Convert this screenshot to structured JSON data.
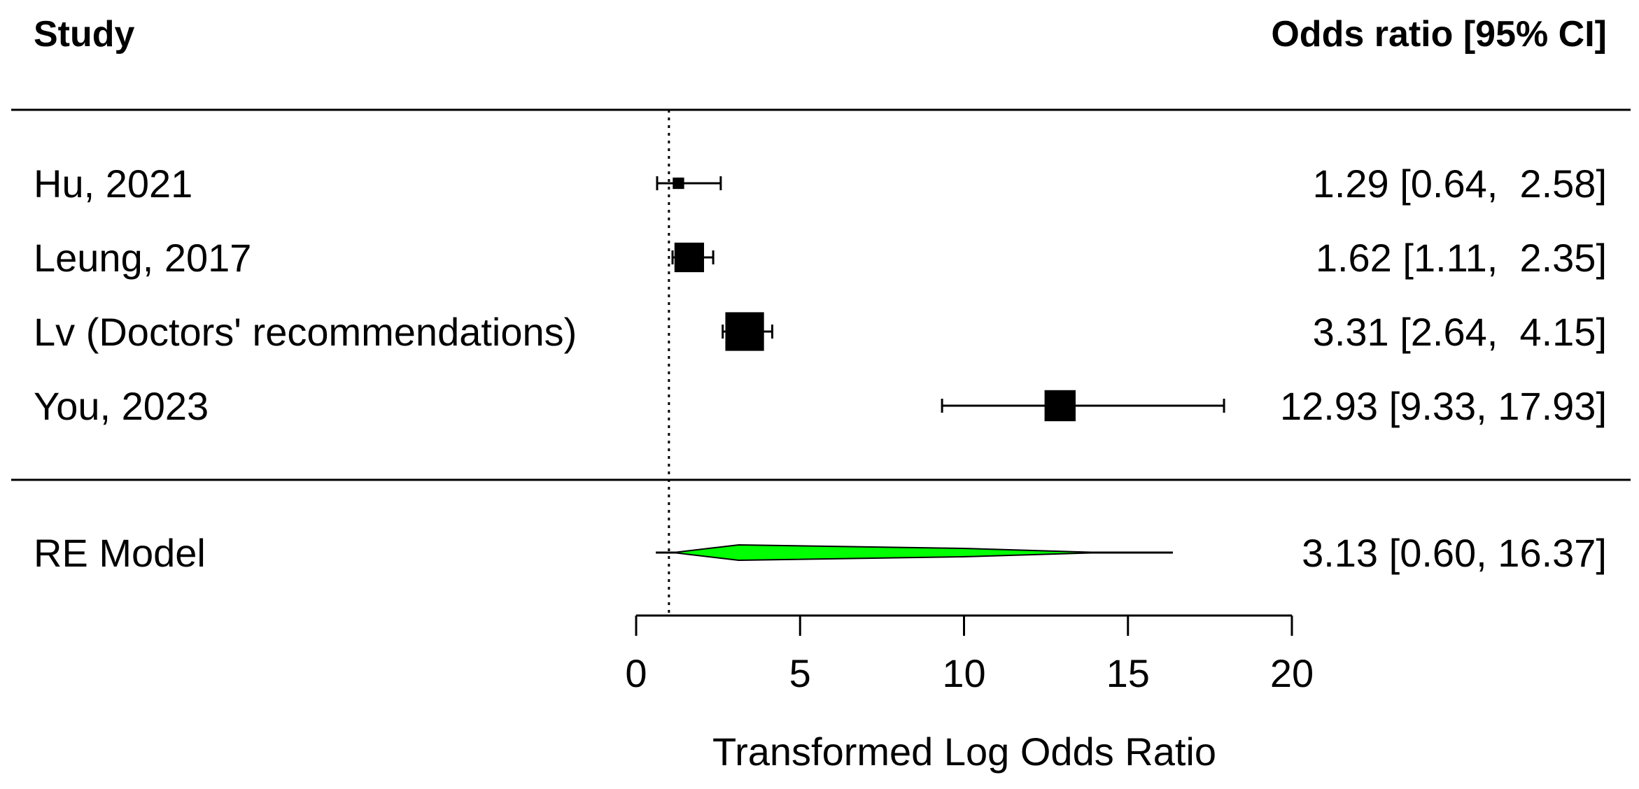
{
  "chart_data": {
    "type": "forest",
    "headers": {
      "study": "Study",
      "effect": "Odds ratio [95% CI]"
    },
    "studies": [
      {
        "name": "Hu, 2021",
        "estimate": 1.29,
        "ci_low": 0.64,
        "ci_high": 2.58,
        "label": "1.29 [0.64,  2.58]",
        "weight": 0.06
      },
      {
        "name": "Leung, 2017",
        "estimate": 1.62,
        "ci_low": 1.11,
        "ci_high": 2.35,
        "label": "1.62 [1.11,  2.35]",
        "weight": 0.42
      },
      {
        "name": "Lv (Doctors' recommendations)",
        "estimate": 3.31,
        "ci_low": 2.64,
        "ci_high": 4.15,
        "label": "3.31 [2.64,  4.15]",
        "weight": 0.6
      },
      {
        "name": "You, 2023",
        "estimate": 12.93,
        "ci_low": 9.33,
        "ci_high": 17.93,
        "label": "12.93 [9.33, 17.93]",
        "weight": 0.45
      }
    ],
    "summary": {
      "name": "RE Model",
      "estimate": 3.13,
      "ci_low": 0.6,
      "ci_high": 16.37,
      "label": "3.13 [0.60, 16.37]",
      "color": "#00ff00"
    },
    "reference_line": 1,
    "xlim": [
      0,
      20
    ],
    "xticks": [
      0,
      5,
      10,
      15,
      20
    ],
    "xlabel": "Transformed Log Odds Ratio"
  }
}
